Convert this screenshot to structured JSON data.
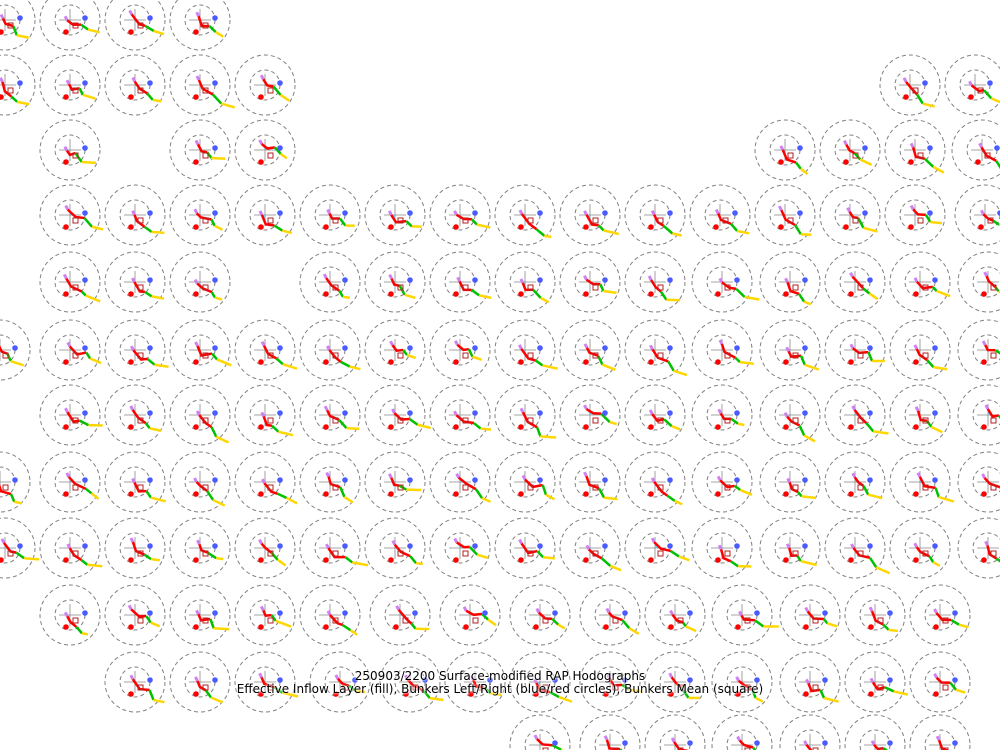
{
  "title": "250903/2200 Surface-modified RAP Hodographs",
  "subtitle": "Effective Inflow Layer (fill), Bunkers Left/Right (blue/red circles), Bunkers Mean (square)",
  "colors": {
    "range_rings": "#808080",
    "effective_inflow_fill": "#5ec8f0",
    "bunkers_left": "#4a5cff",
    "bunkers_right": "#ff0000",
    "bunkers_mean": "#b22222",
    "hodo_0_3km": "#ff0000",
    "hodo_3_6km": "#00c000",
    "hodo_6_9km": "#ffd700",
    "hodo_lowest": "#d080f0"
  }
}
